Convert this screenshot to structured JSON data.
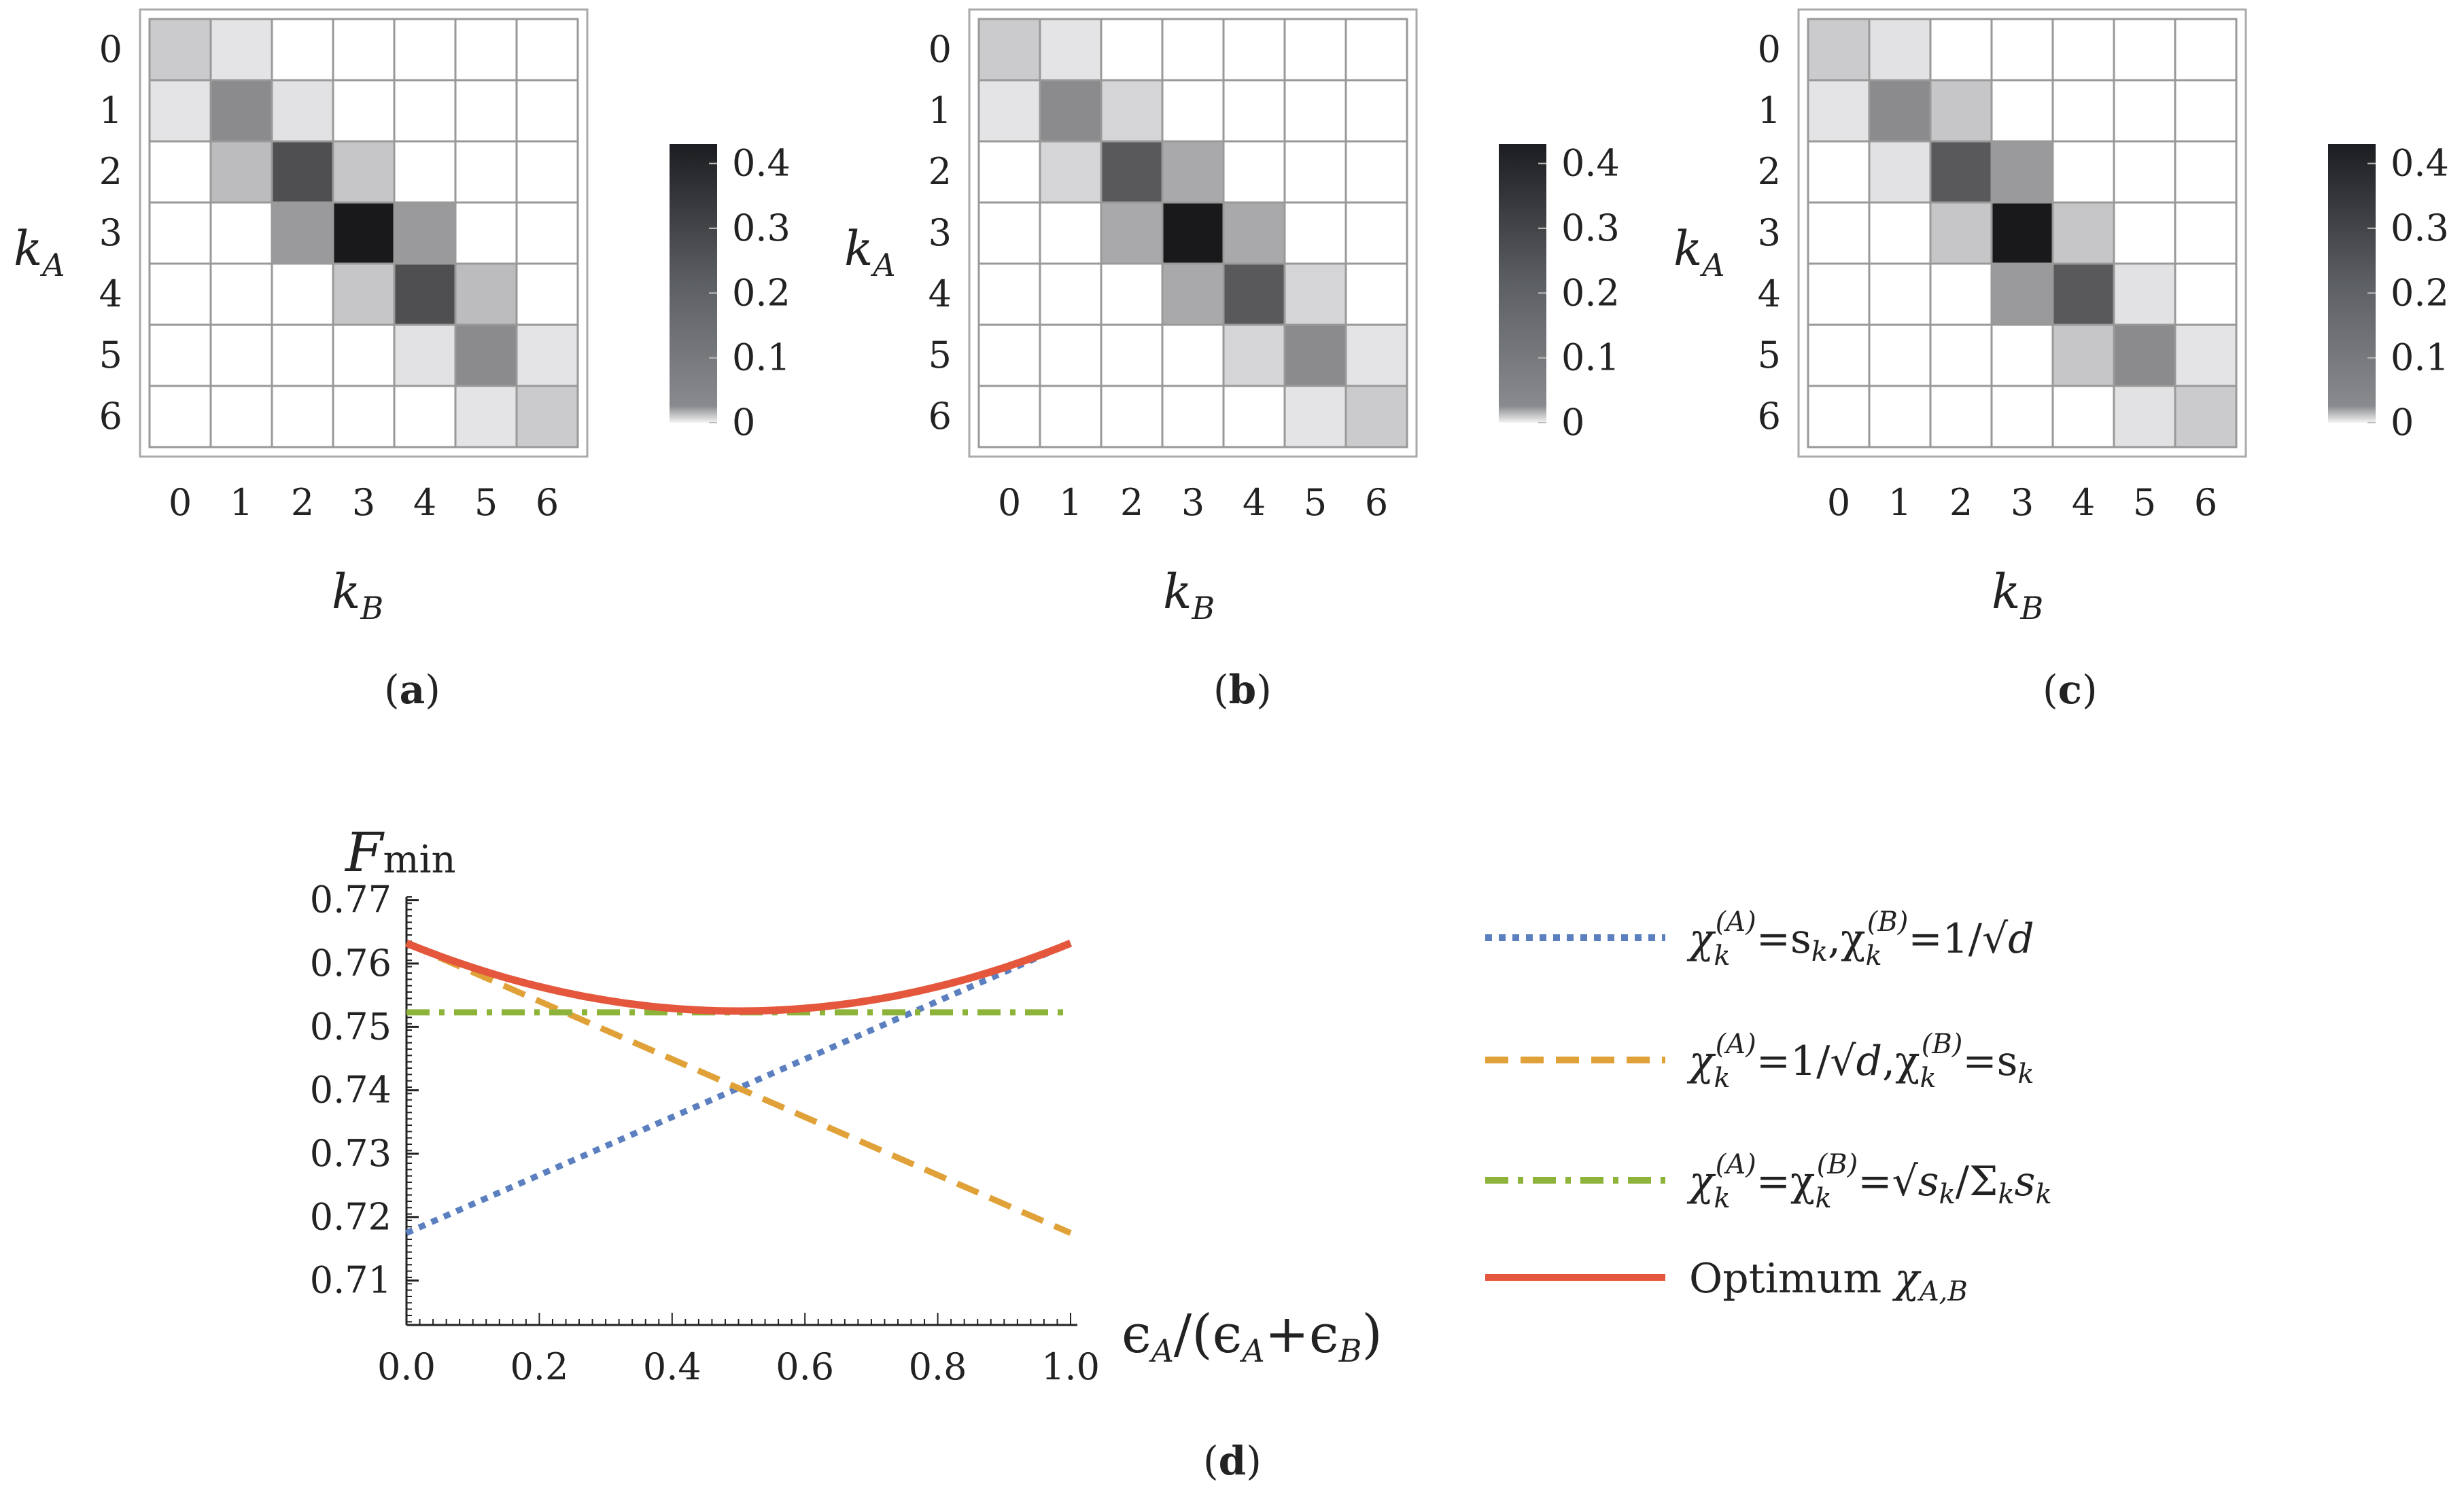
{
  "chart_data": [
    {
      "type": "heatmap",
      "panel": "a",
      "ylabel": "k",
      "ylabel_sub": "A",
      "xlabel": "k",
      "xlabel_sub": "B",
      "x_categories": [
        "0",
        "1",
        "2",
        "3",
        "4",
        "5",
        "6"
      ],
      "y_categories": [
        "0",
        "1",
        "2",
        "3",
        "4",
        "5",
        "6"
      ],
      "colorbar_ticks": [
        "0",
        "0.1",
        "0.2",
        "0.3",
        "0.4"
      ],
      "colorbar_range": [
        0,
        0.43
      ],
      "values": [
        [
          0.07,
          0.02,
          0,
          0,
          0,
          0,
          0
        ],
        [
          0.02,
          0.2,
          0.025,
          0,
          0,
          0,
          0
        ],
        [
          0,
          0.1,
          0.32,
          0.08,
          0,
          0,
          0
        ],
        [
          0,
          0,
          0.17,
          0.43,
          0.17,
          0,
          0
        ],
        [
          0,
          0,
          0,
          0.08,
          0.32,
          0.1,
          0
        ],
        [
          0,
          0,
          0,
          0,
          0.025,
          0.2,
          0.02
        ],
        [
          0,
          0,
          0,
          0,
          0,
          0.02,
          0.07
        ]
      ]
    },
    {
      "type": "heatmap",
      "panel": "b",
      "ylabel": "k",
      "ylabel_sub": "A",
      "xlabel": "k",
      "xlabel_sub": "B",
      "x_categories": [
        "0",
        "1",
        "2",
        "3",
        "4",
        "5",
        "6"
      ],
      "y_categories": [
        "0",
        "1",
        "2",
        "3",
        "4",
        "5",
        "6"
      ],
      "colorbar_ticks": [
        "0",
        "0.1",
        "0.2",
        "0.3",
        "0.4"
      ],
      "colorbar_range": [
        0,
        0.43
      ],
      "values": [
        [
          0.07,
          0.02,
          0,
          0,
          0,
          0,
          0
        ],
        [
          0.02,
          0.2,
          0.05,
          0,
          0,
          0,
          0
        ],
        [
          0,
          0.05,
          0.3,
          0.14,
          0,
          0,
          0
        ],
        [
          0,
          0,
          0.14,
          0.43,
          0.14,
          0,
          0
        ],
        [
          0,
          0,
          0,
          0.14,
          0.3,
          0.05,
          0
        ],
        [
          0,
          0,
          0,
          0,
          0.05,
          0.2,
          0.02
        ],
        [
          0,
          0,
          0,
          0,
          0,
          0.02,
          0.07
        ]
      ]
    },
    {
      "type": "heatmap",
      "panel": "c",
      "ylabel": "k",
      "ylabel_sub": "A",
      "xlabel": "k",
      "xlabel_sub": "B",
      "x_categories": [
        "0",
        "1",
        "2",
        "3",
        "4",
        "5",
        "6"
      ],
      "y_categories": [
        "0",
        "1",
        "2",
        "3",
        "4",
        "5",
        "6"
      ],
      "colorbar_ticks": [
        "0",
        "0.1",
        "0.2",
        "0.3",
        "0.4"
      ],
      "colorbar_range": [
        0,
        0.43
      ],
      "values": [
        [
          0.07,
          0.025,
          0,
          0,
          0,
          0,
          0
        ],
        [
          0.02,
          0.2,
          0.08,
          0,
          0,
          0,
          0
        ],
        [
          0,
          0.025,
          0.3,
          0.17,
          0,
          0,
          0
        ],
        [
          0,
          0,
          0.08,
          0.43,
          0.08,
          0,
          0
        ],
        [
          0,
          0,
          0,
          0.17,
          0.3,
          0.025,
          0
        ],
        [
          0,
          0,
          0,
          0,
          0.08,
          0.2,
          0.02
        ],
        [
          0,
          0,
          0,
          0,
          0,
          0.025,
          0.07
        ]
      ]
    },
    {
      "type": "line",
      "panel": "d",
      "ylabel": "F",
      "ylabel_sub": "min",
      "xlabel": "ϵ_A/(ϵ_A+ϵ_B)",
      "xlim": [
        0,
        1
      ],
      "ylim": [
        0.703,
        0.7705
      ],
      "xticks": [
        "0.0",
        "0.2",
        "0.4",
        "0.6",
        "0.8",
        "1.0"
      ],
      "yticks": [
        "0.71",
        "0.72",
        "0.73",
        "0.74",
        "0.75",
        "0.76",
        "0.77"
      ],
      "series": [
        {
          "name": "χ_k^(A)=s_k, χ_k^(B)=1/√d",
          "style": "dotted",
          "color": "#5b7fbf",
          "x": [
            0,
            1
          ],
          "y": [
            0.7175,
            0.7632
          ]
        },
        {
          "name": "χ_k^(A)=1/√d, χ_k^(B)=s_k",
          "style": "dashed",
          "color": "#e0a238",
          "x": [
            0,
            1
          ],
          "y": [
            0.7632,
            0.7175
          ]
        },
        {
          "name": "χ_k^(A)=χ_k^(B)=√s_k/Σ_k s_k",
          "style": "dashdot",
          "color": "#8db33a",
          "x": [
            0,
            1
          ],
          "y": [
            0.7523,
            0.7523
          ]
        },
        {
          "name": "Optimum χ_A,B",
          "style": "solid",
          "color": "#e4573d",
          "x": [
            0,
            0.1,
            0.2,
            0.3,
            0.4,
            0.5,
            0.6,
            0.7,
            0.8,
            0.9,
            1.0
          ],
          "y": [
            0.7632,
            0.7592,
            0.7563,
            0.7542,
            0.753,
            0.7525,
            0.753,
            0.7542,
            0.7563,
            0.7592,
            0.7632
          ]
        }
      ]
    }
  ],
  "labels": {
    "panel_a": "a",
    "panel_b": "b",
    "panel_c": "c",
    "panel_d": "d",
    "heat_axis_letter": "k",
    "heat_ysub": "A",
    "heat_xsub": "B",
    "fmin_letter": "F",
    "fmin_sub": "min",
    "xlab_main": "ϵ",
    "xlab_sub_a": "A",
    "xlab_mid": "/(ϵ",
    "xlab_sub_a2": "A",
    "xlab_plus": "+ϵ",
    "xlab_sub_b": "B",
    "xlab_end": ")"
  },
  "legend": [
    {
      "id": "l1",
      "color": "#5b7fbf",
      "style": "dotted",
      "parts": {
        "chi": "χ",
        "sub": "k",
        "sup": "(A)",
        "eq": "=s",
        "s_sub": "k",
        "comma": ",χ",
        "sub2": "k",
        "sup2": "(B)",
        "eq2": "=1/√",
        "d": "d"
      }
    },
    {
      "id": "l2",
      "color": "#e0a238",
      "style": "dashed",
      "parts": {
        "chi": "χ",
        "sub": "k",
        "sup": "(A)",
        "eq": "=1/√",
        "d": "d",
        "comma": ",χ",
        "sub2": "k",
        "sup2": "(B)",
        "eq2": "=s",
        "s_sub": "k"
      }
    },
    {
      "id": "l3",
      "color": "#8db33a",
      "style": "dashdot",
      "parts": {
        "chi": "χ",
        "sub": "k",
        "sup": "(A)",
        "eq": "=χ",
        "sub2": "k",
        "sup2": "(B)",
        "eq2": "=√",
        "s": "s",
        "s_sub": "k",
        "tail": "/Σ",
        "tail_sub": "k",
        "tail_s": "s",
        "tail_s_sub": "k"
      }
    },
    {
      "id": "l4",
      "color": "#e4573d",
      "style": "solid",
      "parts": {
        "text": "Optimum ",
        "chi": "χ",
        "sub": "A,B"
      }
    }
  ]
}
